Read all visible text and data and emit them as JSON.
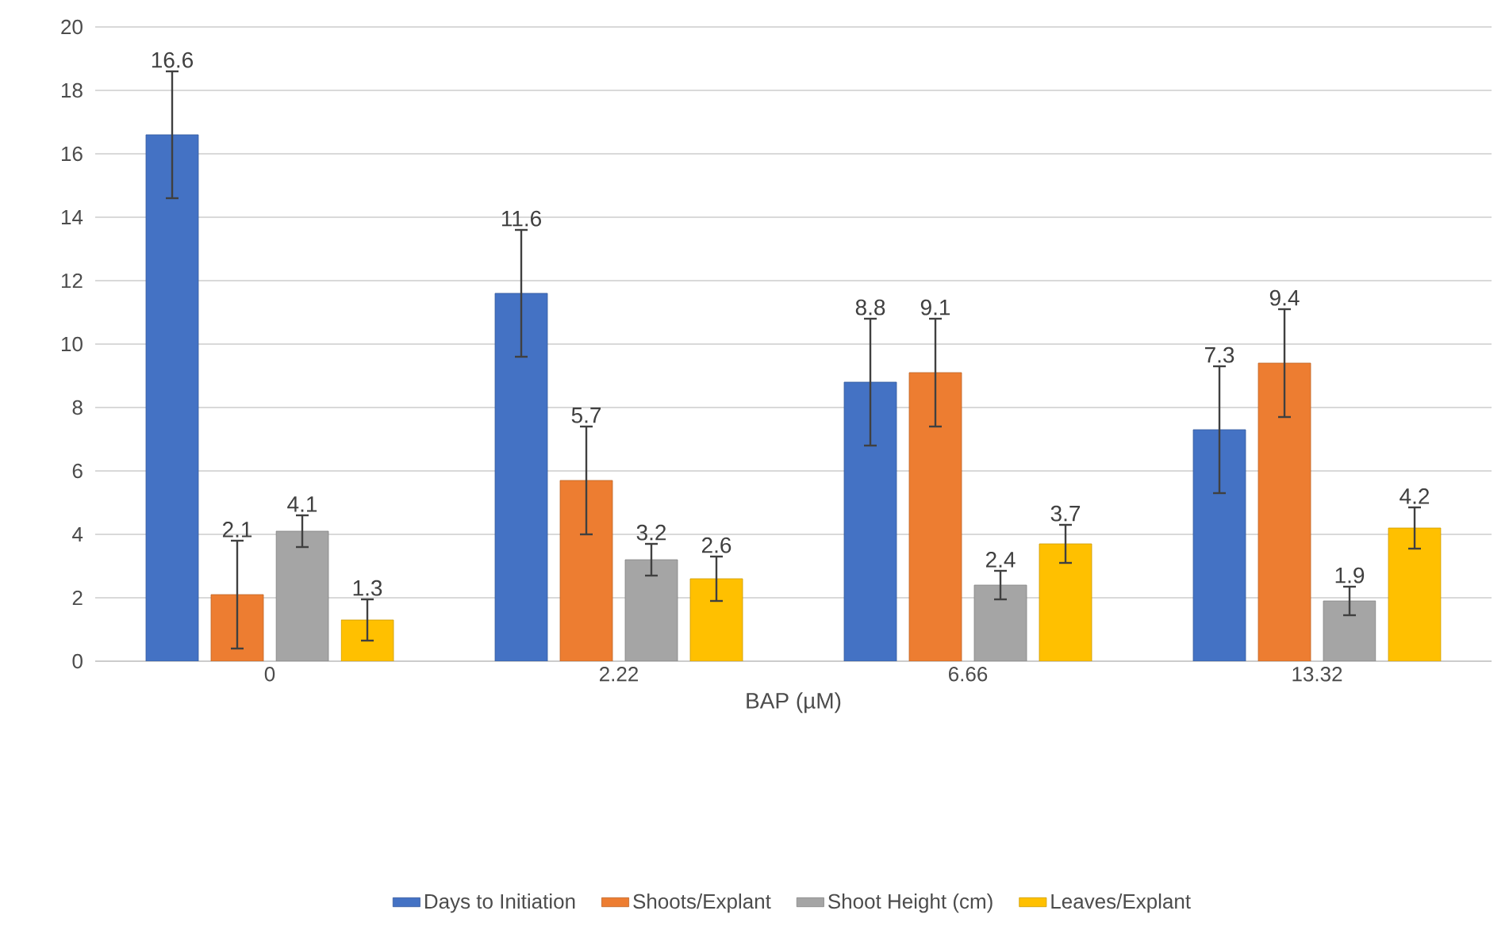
{
  "chart_data": {
    "type": "bar",
    "xlabel": "BAP (µM)",
    "categories": [
      "0",
      "2.22",
      "6.66",
      "13.32"
    ],
    "series": [
      {
        "name": "Days to Initiation",
        "color": "#4472c4",
        "values": [
          16.6,
          11.6,
          8.8,
          7.3
        ],
        "errors": [
          2.0,
          2.0,
          2.0,
          2.0
        ]
      },
      {
        "name": "Shoots/Explant",
        "color": "#ed7d31",
        "values": [
          2.1,
          5.7,
          9.1,
          9.4
        ],
        "errors": [
          1.7,
          1.7,
          1.7,
          1.7
        ]
      },
      {
        "name": "Shoot Height (cm)",
        "color": "#a5a5a5",
        "values": [
          4.1,
          3.2,
          2.4,
          1.9
        ],
        "errors": [
          0.5,
          0.5,
          0.45,
          0.45
        ]
      },
      {
        "name": "Leaves/Explant",
        "color": "#ffc000",
        "values": [
          1.3,
          2.6,
          3.7,
          4.2
        ],
        "errors": [
          0.65,
          0.7,
          0.6,
          0.65
        ]
      }
    ],
    "ylim": [
      0,
      20
    ],
    "yticks": [
      0,
      2,
      4,
      6,
      8,
      10,
      12,
      14,
      16,
      18,
      20
    ],
    "grid": "y",
    "legend": "bottom",
    "data_labels": true
  }
}
